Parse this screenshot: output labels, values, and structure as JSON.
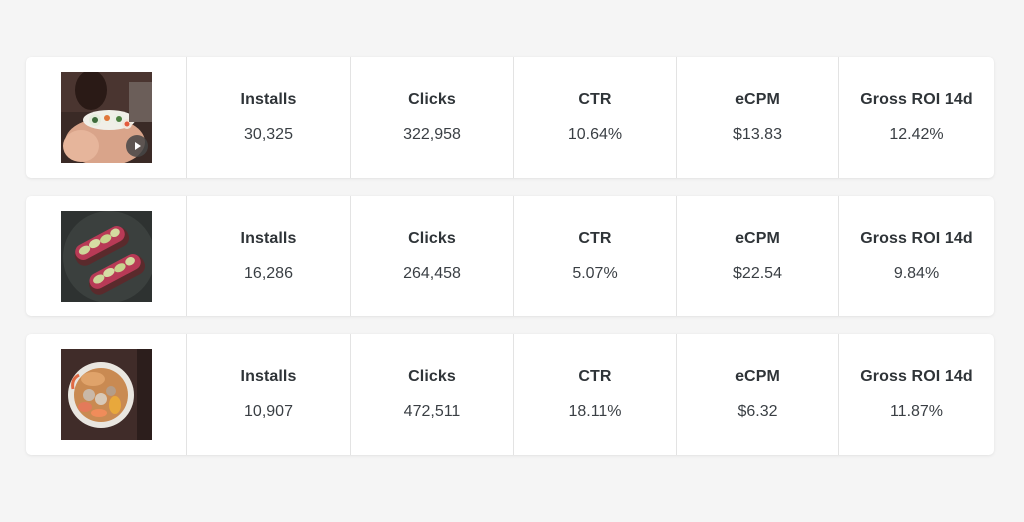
{
  "campaigns": [
    {
      "thumbnail": "sushi-roll-video-thumbnail",
      "is_video": true,
      "metrics": [
        {
          "label": "Installs",
          "value": "30,325"
        },
        {
          "label": "Clicks",
          "value": "322,958"
        },
        {
          "label": "CTR",
          "value": "10.64%"
        },
        {
          "label": "eCPM",
          "value": "$13.83"
        },
        {
          "label": "Gross ROI 14d",
          "value": "12.42%"
        }
      ]
    },
    {
      "thumbnail": "avocado-toast-thumbnail",
      "is_video": false,
      "metrics": [
        {
          "label": "Installs",
          "value": "16,286"
        },
        {
          "label": "Clicks",
          "value": "264,458"
        },
        {
          "label": "CTR",
          "value": "5.07%"
        },
        {
          "label": "eCPM",
          "value": "$22.54"
        },
        {
          "label": "Gross ROI 14d",
          "value": "9.84%"
        }
      ]
    },
    {
      "thumbnail": "food-bowl-thumbnail",
      "is_video": false,
      "metrics": [
        {
          "label": "Installs",
          "value": "10,907"
        },
        {
          "label": "Clicks",
          "value": "472,511"
        },
        {
          "label": "CTR",
          "value": "18.11%"
        },
        {
          "label": "eCPM",
          "value": "$6.32"
        },
        {
          "label": "Gross ROI 14d",
          "value": "11.87%"
        }
      ]
    }
  ],
  "colors": {
    "background": "#f5f5f5",
    "card": "#ffffff",
    "text": "#2f3438",
    "divider": "#e3e3e3"
  }
}
